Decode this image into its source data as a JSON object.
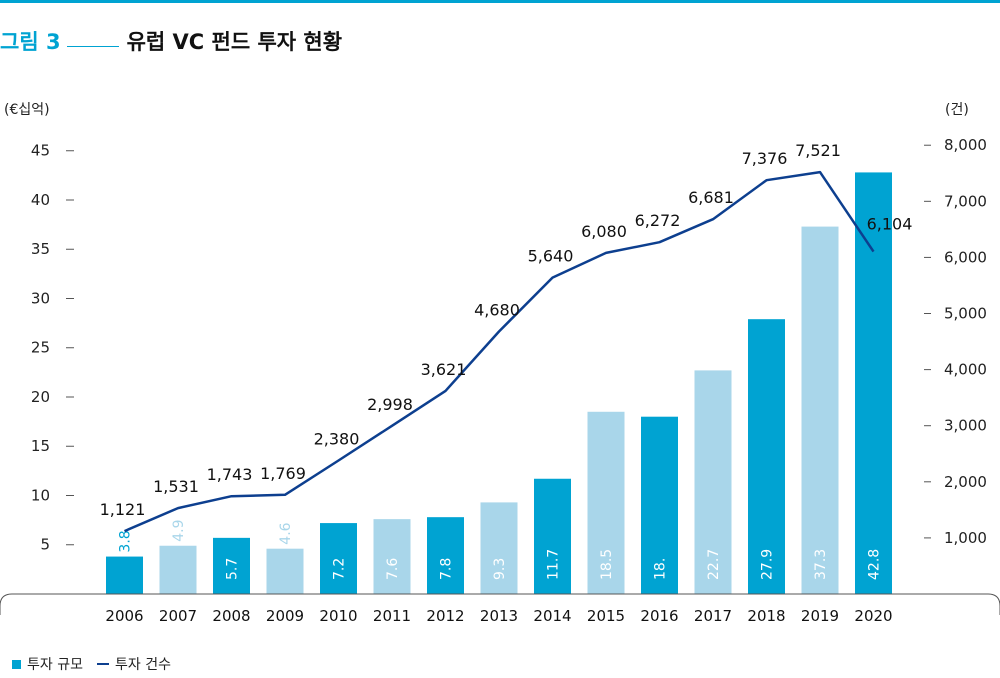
{
  "figure": {
    "label": "그림 3",
    "title": "유럽 VC 펀드 투자 현황"
  },
  "colors": {
    "accent": "#00a3d2",
    "bar_dark": "#00a3d2",
    "bar_light": "#a9d6ea",
    "line": "#0d3f8f"
  },
  "chart_data": {
    "type": "bar",
    "title": "유럽 VC 펀드 투자 현황",
    "categories": [
      "2006",
      "2007",
      "2008",
      "2009",
      "2010",
      "2011",
      "2012",
      "2013",
      "2014",
      "2015",
      "2016",
      "2017",
      "2018",
      "2019",
      "2020"
    ],
    "series": [
      {
        "name": "투자 규모",
        "type": "bar",
        "axis": "left",
        "values": [
          3.8,
          4.9,
          5.7,
          4.6,
          7.2,
          7.6,
          7.8,
          9.3,
          11.7,
          18.5,
          18.0,
          22.7,
          27.9,
          37.3,
          42.8
        ],
        "labels": [
          "3.8",
          "4.9",
          "5.7",
          "4.6",
          "7.2",
          "7.6",
          "7.8",
          "9.3",
          "11.7",
          "18.5",
          "18.",
          "22.7",
          "27.9",
          "37.3",
          "42.8"
        ],
        "shade": [
          "dark",
          "light",
          "dark",
          "light",
          "dark",
          "light",
          "dark",
          "light",
          "dark",
          "light",
          "dark",
          "light",
          "dark",
          "light",
          "dark"
        ]
      },
      {
        "name": "투자 건수",
        "type": "line",
        "axis": "right",
        "values": [
          1121,
          1531,
          1743,
          1769,
          2380,
          2998,
          3621,
          4680,
          5640,
          6080,
          6272,
          6681,
          7376,
          7521,
          6104
        ],
        "labels": [
          "1,121",
          "1,531",
          "1,743",
          "1,769",
          "2,380",
          "2,998",
          "3,621",
          "4,680",
          "5,640",
          "6,080",
          "6,272",
          "6,681",
          "7,376",
          "7,521",
          "6,104"
        ]
      }
    ],
    "y_left": {
      "unit": "(€십억)",
      "ticks": [
        5,
        10,
        15,
        20,
        25,
        30,
        35,
        40,
        45
      ],
      "range": [
        0,
        46.7
      ]
    },
    "y_right": {
      "unit": "(건)",
      "ticks": [
        1000,
        2000,
        3000,
        4000,
        5000,
        6000,
        7000,
        8000
      ],
      "tick_labels": [
        "1,000",
        "2,000",
        "3,000",
        "4,000",
        "5,000",
        "6,000",
        "7,000",
        "8,000"
      ],
      "range": [
        0,
        8200
      ]
    },
    "legend": {
      "position": "bottom-left",
      "items": [
        "투자 규모",
        "투자 건수"
      ]
    },
    "grid": false
  }
}
